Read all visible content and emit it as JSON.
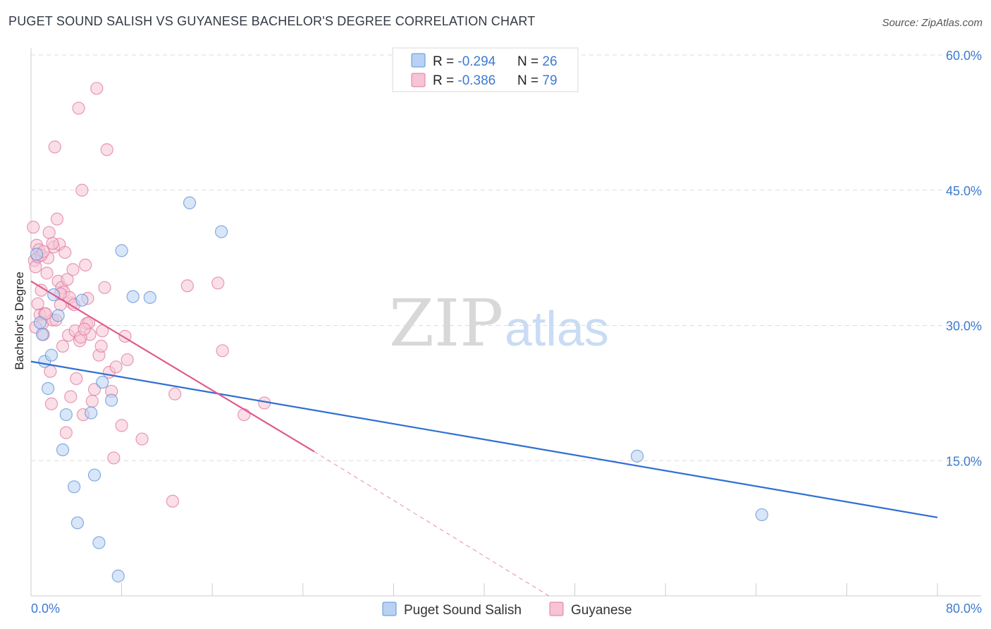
{
  "title": "PUGET SOUND SALISH VS GUYANESE BACHELOR'S DEGREE CORRELATION CHART",
  "source": "Source: ZipAtlas.com",
  "watermark": {
    "zip": "ZIP",
    "atlas": "atlas"
  },
  "colors": {
    "blue": "#5b93dc",
    "blue_fill": "#b9d1f2",
    "pink": "#e07aa0",
    "pink_fill": "#f6c4d4",
    "blue_line": "#2f6fd0",
    "pink_line": "#e05a8e",
    "tick_text": "#3d7bd0",
    "grid": "#dddddd"
  },
  "legend": {
    "rows": [
      {
        "r_label": "R = ",
        "r_value": "-0.294",
        "n_label": "N = ",
        "n_value": "26"
      },
      {
        "r_label": "R = ",
        "r_value": "-0.386",
        "n_label": "N = ",
        "n_value": "79"
      }
    ]
  },
  "bottom_legend": [
    "Puget Sound Salish",
    "Guyanese"
  ],
  "chart_data": {
    "type": "scatter",
    "title": "PUGET SOUND SALISH VS GUYANESE BACHELOR'S DEGREE CORRELATION CHART",
    "xlabel": "",
    "ylabel": "Bachelor's Degree",
    "xlim": [
      0,
      80
    ],
    "ylim": [
      0,
      60
    ],
    "x_tick_labels": [
      "0.0%",
      "80.0%"
    ],
    "y_ticks": [
      15,
      30,
      45,
      60
    ],
    "y_tick_labels": [
      "15.0%",
      "30.0%",
      "45.0%",
      "60.0%"
    ],
    "grid": true,
    "series": [
      {
        "name": "Puget Sound Salish",
        "r": -0.294,
        "n": 26,
        "trend": {
          "x": [
            0,
            80
          ],
          "y": [
            26.0,
            8.7
          ]
        },
        "points": [
          [
            0.5,
            37.9
          ],
          [
            0.8,
            30.3
          ],
          [
            1.0,
            29.0
          ],
          [
            1.2,
            26.0
          ],
          [
            1.5,
            23.0
          ],
          [
            1.8,
            26.7
          ],
          [
            2.0,
            33.4
          ],
          [
            2.4,
            31.1
          ],
          [
            2.8,
            16.2
          ],
          [
            3.1,
            20.1
          ],
          [
            3.8,
            12.1
          ],
          [
            4.1,
            8.1
          ],
          [
            4.5,
            32.8
          ],
          [
            5.3,
            20.3
          ],
          [
            5.6,
            13.4
          ],
          [
            6.0,
            5.9
          ],
          [
            6.3,
            23.7
          ],
          [
            7.1,
            21.7
          ],
          [
            7.7,
            2.2
          ],
          [
            8.0,
            38.3
          ],
          [
            9.0,
            33.2
          ],
          [
            10.5,
            33.1
          ],
          [
            14.0,
            43.6
          ],
          [
            16.8,
            40.4
          ],
          [
            53.5,
            15.5
          ],
          [
            64.5,
            9.0
          ]
        ]
      },
      {
        "name": "Guyanese",
        "r": -0.386,
        "n": 79,
        "trend": {
          "x": [
            0,
            25
          ],
          "y": [
            34.9,
            16.0
          ]
        },
        "trend_dashed": {
          "x": [
            25,
            45.7
          ],
          "y": [
            16.0,
            0.0
          ]
        },
        "points": [
          [
            0.2,
            40.9
          ],
          [
            0.3,
            37.2
          ],
          [
            0.4,
            36.5
          ],
          [
            0.5,
            38.9
          ],
          [
            0.6,
            37.6
          ],
          [
            0.7,
            38.4
          ],
          [
            0.8,
            31.2
          ],
          [
            0.9,
            33.9
          ],
          [
            1.0,
            30.2
          ],
          [
            1.1,
            29.0
          ],
          [
            1.2,
            31.3
          ],
          [
            1.4,
            35.8
          ],
          [
            1.5,
            37.5
          ],
          [
            1.6,
            40.3
          ],
          [
            1.7,
            24.9
          ],
          [
            1.8,
            21.3
          ],
          [
            1.9,
            30.6
          ],
          [
            2.0,
            38.7
          ],
          [
            2.1,
            49.8
          ],
          [
            2.3,
            41.8
          ],
          [
            2.4,
            34.9
          ],
          [
            2.5,
            39.0
          ],
          [
            2.6,
            32.3
          ],
          [
            2.7,
            34.2
          ],
          [
            2.8,
            27.7
          ],
          [
            2.9,
            33.7
          ],
          [
            3.0,
            38.1
          ],
          [
            3.1,
            18.1
          ],
          [
            3.2,
            35.1
          ],
          [
            3.3,
            28.9
          ],
          [
            3.5,
            22.1
          ],
          [
            3.6,
            32.5
          ],
          [
            3.7,
            36.2
          ],
          [
            3.9,
            29.4
          ],
          [
            4.0,
            24.1
          ],
          [
            4.2,
            54.1
          ],
          [
            4.3,
            28.3
          ],
          [
            4.5,
            45.0
          ],
          [
            4.6,
            20.1
          ],
          [
            4.8,
            36.7
          ],
          [
            4.9,
            30.2
          ],
          [
            5.0,
            33.0
          ],
          [
            5.2,
            29.0
          ],
          [
            5.4,
            21.6
          ],
          [
            5.6,
            22.9
          ],
          [
            5.8,
            56.3
          ],
          [
            6.0,
            26.7
          ],
          [
            6.2,
            27.7
          ],
          [
            6.3,
            29.4
          ],
          [
            6.5,
            34.2
          ],
          [
            6.7,
            49.5
          ],
          [
            6.9,
            24.8
          ],
          [
            7.1,
            22.7
          ],
          [
            7.3,
            15.3
          ],
          [
            7.5,
            25.4
          ],
          [
            8.0,
            18.9
          ],
          [
            8.3,
            28.8
          ],
          [
            8.5,
            26.2
          ],
          [
            9.8,
            17.4
          ],
          [
            12.5,
            10.5
          ],
          [
            12.7,
            22.4
          ],
          [
            13.8,
            34.4
          ],
          [
            16.5,
            34.7
          ],
          [
            16.9,
            27.2
          ],
          [
            18.8,
            20.1
          ],
          [
            20.6,
            21.4
          ],
          [
            1.3,
            31.3
          ],
          [
            0.9,
            37.8
          ],
          [
            2.2,
            30.6
          ],
          [
            3.4,
            33.1
          ],
          [
            4.4,
            28.7
          ],
          [
            5.1,
            30.3
          ],
          [
            0.6,
            32.4
          ],
          [
            1.9,
            39.1
          ],
          [
            3.8,
            32.3
          ],
          [
            2.6,
            33.5
          ],
          [
            1.1,
            38.2
          ],
          [
            4.7,
            29.6
          ],
          [
            0.4,
            29.8
          ]
        ]
      }
    ]
  }
}
